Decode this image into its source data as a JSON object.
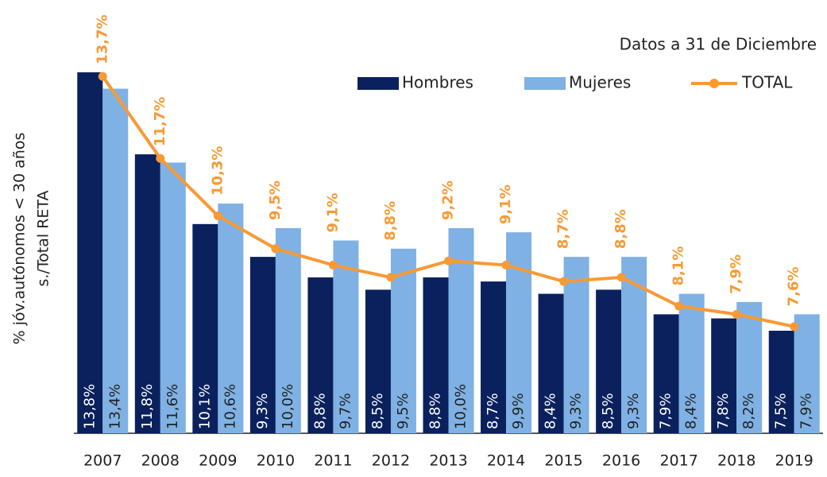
{
  "chart_data": {
    "type": "bar_line",
    "subtitle": "Datos a 31 de Diciembre",
    "y_label": [
      "% jóv.autónomos < 30 años",
      "s./Total RETA"
    ],
    "categories": [
      "2007",
      "2008",
      "2009",
      "2010",
      "2011",
      "2012",
      "2013",
      "2014",
      "2015",
      "2016",
      "2017",
      "2018",
      "2019"
    ],
    "series": [
      {
        "name": "Hombres",
        "color": "#0a215e",
        "kind": "bar",
        "values": [
          13.8,
          11.8,
          10.1,
          9.3,
          8.8,
          8.5,
          8.8,
          8.7,
          8.4,
          8.5,
          7.9,
          7.8,
          7.5
        ],
        "value_labels": [
          "13,8%",
          "11,8%",
          "10,1%",
          "9,3%",
          "8,8%",
          "8,5%",
          "8,8%",
          "8,7%",
          "8,4%",
          "8,5%",
          "7,9%",
          "7,8%",
          "7,5%"
        ]
      },
      {
        "name": "Mujeres",
        "color": "#7fb1e4",
        "kind": "bar",
        "values": [
          13.4,
          11.6,
          10.6,
          10.0,
          9.7,
          9.5,
          10.0,
          9.9,
          9.3,
          9.3,
          8.4,
          8.2,
          7.9
        ],
        "value_labels": [
          "13,4%",
          "11,6%",
          "10,6%",
          "10,0%",
          "9,7%",
          "9,5%",
          "10,0%",
          "9,9%",
          "9,3%",
          "9,3%",
          "8,4%",
          "8,2%",
          "7,9%"
        ]
      },
      {
        "name": "TOTAL",
        "color": "#f79a35",
        "kind": "line",
        "values": [
          13.7,
          11.7,
          10.3,
          9.5,
          9.1,
          8.8,
          9.2,
          9.1,
          8.7,
          8.8,
          8.1,
          7.9,
          7.6
        ],
        "value_labels": [
          "13,7%",
          "11,7%",
          "10,3%",
          "9,5%",
          "9,1%",
          "8,8%",
          "9,2%",
          "9,1%",
          "8,7%",
          "8,8%",
          "8,1%",
          "7,9%",
          "7,6%"
        ]
      }
    ],
    "ylim": [
      5,
      15
    ],
    "legend": "top-right"
  }
}
